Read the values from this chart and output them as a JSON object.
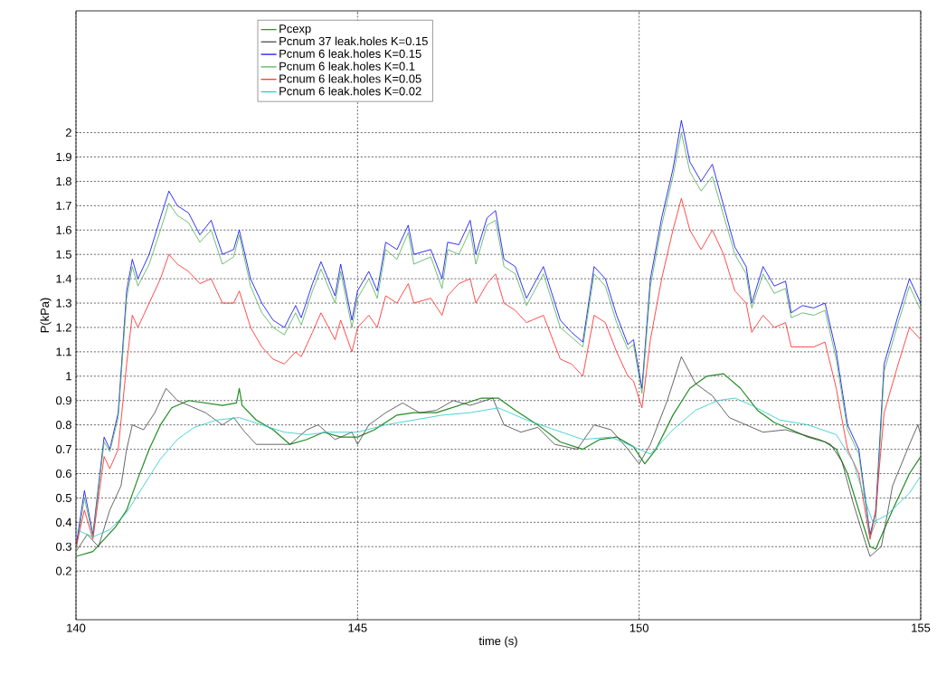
{
  "chart_data": {
    "type": "line",
    "xlabel": "time (s)",
    "ylabel": "P(kPa)",
    "xlim": [
      140,
      155
    ],
    "ylim": [
      0,
      2.5
    ],
    "xticks": [
      140,
      145,
      150,
      155
    ],
    "yticks": [
      0.2,
      0.3,
      0.4,
      0.5,
      0.6,
      0.7,
      0.8,
      0.9,
      1,
      1.1,
      1.2,
      1.3,
      1.4,
      1.5,
      1.6,
      1.7,
      1.8,
      1.9,
      2
    ],
    "grid": true,
    "legend": "top",
    "line_style": "solid",
    "marker": "none",
    "series": [
      {
        "name": "Pcexp",
        "color": "#228b22",
        "x": [
          140.0,
          140.3,
          140.5,
          140.7,
          140.9,
          141.1,
          141.3,
          141.5,
          141.7,
          142.0,
          142.3,
          142.6,
          142.85,
          142.9,
          142.95,
          143.2,
          143.5,
          143.8,
          144.1,
          144.4,
          144.7,
          145.0,
          145.3,
          145.7,
          146.0,
          146.4,
          146.8,
          147.2,
          147.5,
          147.8,
          148.2,
          148.6,
          149.0,
          149.3,
          149.6,
          149.9,
          150.1,
          150.3,
          150.6,
          150.9,
          151.2,
          151.5,
          151.8,
          152.1,
          152.4,
          152.7,
          153.0,
          153.3,
          153.5,
          153.7,
          153.9,
          154.1,
          154.2,
          154.5,
          154.8,
          155.0
        ],
        "values": [
          0.26,
          0.28,
          0.33,
          0.38,
          0.45,
          0.58,
          0.7,
          0.8,
          0.87,
          0.9,
          0.89,
          0.88,
          0.89,
          0.95,
          0.88,
          0.82,
          0.78,
          0.72,
          0.74,
          0.77,
          0.75,
          0.75,
          0.78,
          0.84,
          0.85,
          0.85,
          0.88,
          0.91,
          0.91,
          0.86,
          0.8,
          0.73,
          0.7,
          0.74,
          0.75,
          0.71,
          0.64,
          0.7,
          0.84,
          0.95,
          1.0,
          1.01,
          0.95,
          0.86,
          0.81,
          0.78,
          0.75,
          0.73,
          0.7,
          0.6,
          0.45,
          0.3,
          0.29,
          0.45,
          0.6,
          0.67
        ]
      },
      {
        "name": "Pcnum 37 leak.holes K=0.15",
        "color": "#404040",
        "x": [
          140.0,
          140.2,
          140.4,
          140.6,
          140.8,
          140.9,
          141.0,
          141.2,
          141.4,
          141.6,
          141.8,
          142.0,
          142.3,
          142.6,
          142.8,
          143.0,
          143.2,
          143.5,
          143.8,
          144.1,
          144.3,
          144.6,
          144.9,
          145.0,
          145.2,
          145.5,
          145.8,
          146.1,
          146.4,
          146.7,
          147.0,
          147.4,
          147.6,
          147.9,
          148.2,
          148.5,
          148.9,
          149.2,
          149.5,
          149.8,
          150.0,
          150.2,
          150.5,
          150.75,
          151.0,
          151.3,
          151.6,
          151.9,
          152.2,
          152.6,
          152.9,
          153.2,
          153.4,
          153.6,
          153.8,
          154.0,
          154.1,
          154.3,
          154.5,
          154.8,
          154.95,
          155.0
        ],
        "values": [
          0.28,
          0.35,
          0.3,
          0.45,
          0.55,
          0.7,
          0.8,
          0.78,
          0.85,
          0.95,
          0.9,
          0.88,
          0.85,
          0.8,
          0.83,
          0.77,
          0.72,
          0.72,
          0.72,
          0.78,
          0.8,
          0.74,
          0.77,
          0.72,
          0.8,
          0.85,
          0.89,
          0.85,
          0.86,
          0.9,
          0.88,
          0.91,
          0.8,
          0.77,
          0.79,
          0.72,
          0.7,
          0.8,
          0.78,
          0.7,
          0.64,
          0.72,
          0.9,
          1.08,
          0.97,
          0.92,
          0.83,
          0.8,
          0.77,
          0.78,
          0.76,
          0.74,
          0.72,
          0.65,
          0.48,
          0.33,
          0.26,
          0.3,
          0.55,
          0.72,
          0.8,
          0.76
        ]
      },
      {
        "name": "Pcnum 6 leak.holes K=0.15",
        "color": "#0000ff",
        "x": [
          140.0,
          140.15,
          140.3,
          140.5,
          140.6,
          140.75,
          140.9,
          141.0,
          141.1,
          141.3,
          141.5,
          141.65,
          141.8,
          142.0,
          142.2,
          142.4,
          142.6,
          142.8,
          142.9,
          143.1,
          143.3,
          143.5,
          143.7,
          143.9,
          144.0,
          144.2,
          144.35,
          144.6,
          144.7,
          144.9,
          145.0,
          145.2,
          145.35,
          145.5,
          145.7,
          145.9,
          146.0,
          146.3,
          146.5,
          146.6,
          146.8,
          147.0,
          147.1,
          147.3,
          147.45,
          147.6,
          147.8,
          148.0,
          148.3,
          148.6,
          148.8,
          149.0,
          149.2,
          149.4,
          149.6,
          149.8,
          149.9,
          150.05,
          150.2,
          150.4,
          150.6,
          150.75,
          150.9,
          151.1,
          151.3,
          151.5,
          151.7,
          151.9,
          152.0,
          152.2,
          152.4,
          152.6,
          152.7,
          152.9,
          153.1,
          153.3,
          153.5,
          153.7,
          153.9,
          154.1,
          154.2,
          154.35,
          154.6,
          154.8,
          155.0
        ],
        "values": [
          0.3,
          0.53,
          0.35,
          0.75,
          0.7,
          0.85,
          1.35,
          1.48,
          1.4,
          1.5,
          1.65,
          1.76,
          1.7,
          1.67,
          1.58,
          1.64,
          1.5,
          1.52,
          1.6,
          1.4,
          1.3,
          1.23,
          1.2,
          1.29,
          1.24,
          1.38,
          1.47,
          1.33,
          1.46,
          1.23,
          1.35,
          1.43,
          1.35,
          1.55,
          1.52,
          1.62,
          1.5,
          1.52,
          1.4,
          1.55,
          1.54,
          1.64,
          1.5,
          1.65,
          1.68,
          1.48,
          1.45,
          1.32,
          1.45,
          1.23,
          1.18,
          1.14,
          1.45,
          1.4,
          1.25,
          1.13,
          1.15,
          0.95,
          1.4,
          1.65,
          1.85,
          2.05,
          1.88,
          1.8,
          1.87,
          1.7,
          1.53,
          1.45,
          1.3,
          1.45,
          1.37,
          1.39,
          1.26,
          1.29,
          1.28,
          1.3,
          1.1,
          0.8,
          0.7,
          0.35,
          0.44,
          1.05,
          1.25,
          1.4,
          1.3
        ]
      },
      {
        "name": "Pcnum 6 leak.holes K=0.1",
        "color": "#4caf50",
        "x": [
          140.0,
          140.15,
          140.3,
          140.5,
          140.6,
          140.75,
          140.9,
          141.0,
          141.1,
          141.3,
          141.5,
          141.65,
          141.8,
          142.0,
          142.2,
          142.4,
          142.6,
          142.8,
          142.9,
          143.1,
          143.3,
          143.5,
          143.7,
          143.9,
          144.0,
          144.2,
          144.35,
          144.6,
          144.7,
          144.9,
          145.0,
          145.2,
          145.35,
          145.5,
          145.7,
          145.9,
          146.0,
          146.3,
          146.5,
          146.6,
          146.8,
          147.0,
          147.1,
          147.3,
          147.45,
          147.6,
          147.8,
          148.0,
          148.3,
          148.6,
          148.8,
          149.0,
          149.2,
          149.4,
          149.6,
          149.8,
          149.9,
          150.05,
          150.2,
          150.4,
          150.6,
          150.75,
          150.9,
          151.1,
          151.3,
          151.5,
          151.7,
          151.9,
          152.0,
          152.2,
          152.4,
          152.6,
          152.7,
          152.9,
          153.1,
          153.3,
          153.5,
          153.7,
          153.9,
          154.1,
          154.2,
          154.35,
          154.6,
          154.8,
          155.0
        ],
        "values": [
          0.28,
          0.5,
          0.34,
          0.73,
          0.69,
          0.83,
          1.32,
          1.45,
          1.37,
          1.46,
          1.6,
          1.71,
          1.66,
          1.63,
          1.55,
          1.6,
          1.46,
          1.49,
          1.58,
          1.37,
          1.26,
          1.2,
          1.17,
          1.26,
          1.21,
          1.35,
          1.44,
          1.3,
          1.43,
          1.2,
          1.32,
          1.4,
          1.32,
          1.52,
          1.48,
          1.59,
          1.46,
          1.49,
          1.36,
          1.52,
          1.5,
          1.6,
          1.46,
          1.62,
          1.64,
          1.45,
          1.42,
          1.29,
          1.42,
          1.2,
          1.16,
          1.12,
          1.42,
          1.37,
          1.22,
          1.11,
          1.13,
          0.93,
          1.37,
          1.62,
          1.82,
          2.0,
          1.84,
          1.76,
          1.82,
          1.66,
          1.5,
          1.42,
          1.28,
          1.42,
          1.34,
          1.36,
          1.24,
          1.26,
          1.25,
          1.27,
          1.07,
          0.78,
          0.68,
          0.34,
          0.4,
          1.02,
          1.22,
          1.37,
          1.27
        ]
      },
      {
        "name": "Pcnum 6 leak.holes K=0.05",
        "color": "#ff2020",
        "x": [
          140.0,
          140.15,
          140.3,
          140.5,
          140.6,
          140.75,
          140.9,
          141.0,
          141.1,
          141.3,
          141.5,
          141.65,
          141.8,
          142.0,
          142.2,
          142.4,
          142.6,
          142.8,
          142.9,
          143.1,
          143.3,
          143.5,
          143.7,
          143.9,
          144.0,
          144.2,
          144.35,
          144.6,
          144.7,
          144.9,
          145.0,
          145.2,
          145.35,
          145.5,
          145.7,
          145.9,
          146.0,
          146.3,
          146.5,
          146.6,
          146.8,
          147.0,
          147.1,
          147.3,
          147.45,
          147.6,
          147.8,
          148.0,
          148.3,
          148.6,
          148.8,
          149.0,
          149.2,
          149.4,
          149.6,
          149.8,
          149.9,
          150.05,
          150.2,
          150.4,
          150.6,
          150.75,
          150.9,
          151.1,
          151.3,
          151.5,
          151.7,
          151.9,
          152.0,
          152.2,
          152.4,
          152.6,
          152.7,
          152.9,
          153.1,
          153.3,
          153.5,
          153.7,
          153.9,
          154.1,
          154.2,
          154.35,
          154.6,
          154.8,
          155.0
        ],
        "values": [
          0.3,
          0.45,
          0.33,
          0.67,
          0.62,
          0.7,
          1.05,
          1.25,
          1.2,
          1.3,
          1.4,
          1.5,
          1.46,
          1.43,
          1.38,
          1.4,
          1.3,
          1.3,
          1.35,
          1.2,
          1.12,
          1.07,
          1.05,
          1.1,
          1.08,
          1.18,
          1.26,
          1.15,
          1.23,
          1.1,
          1.2,
          1.25,
          1.2,
          1.33,
          1.3,
          1.38,
          1.3,
          1.32,
          1.25,
          1.33,
          1.38,
          1.4,
          1.3,
          1.38,
          1.42,
          1.3,
          1.27,
          1.22,
          1.25,
          1.07,
          1.05,
          1.0,
          1.25,
          1.22,
          1.1,
          1.0,
          0.98,
          0.87,
          1.15,
          1.4,
          1.6,
          1.73,
          1.6,
          1.52,
          1.6,
          1.5,
          1.35,
          1.3,
          1.18,
          1.25,
          1.2,
          1.22,
          1.12,
          1.12,
          1.12,
          1.14,
          0.95,
          0.7,
          0.6,
          0.33,
          0.45,
          0.85,
          1.05,
          1.2,
          1.15
        ]
      },
      {
        "name": "Pcnum 6 leak.holes K=0.02",
        "color": "#20c8c8",
        "x": [
          140.0,
          140.3,
          140.6,
          140.9,
          141.2,
          141.5,
          141.8,
          142.1,
          142.5,
          142.9,
          143.3,
          143.7,
          144.1,
          144.5,
          145.0,
          145.5,
          146.0,
          146.5,
          147.0,
          147.5,
          148.0,
          148.5,
          149.0,
          149.5,
          150.0,
          150.2,
          150.6,
          151.0,
          151.4,
          151.7,
          152.0,
          152.5,
          153.0,
          153.5,
          153.8,
          154.0,
          154.15,
          154.4,
          154.8,
          155.0
        ],
        "values": [
          0.37,
          0.34,
          0.37,
          0.44,
          0.55,
          0.66,
          0.74,
          0.79,
          0.82,
          0.83,
          0.8,
          0.77,
          0.76,
          0.77,
          0.77,
          0.8,
          0.82,
          0.84,
          0.85,
          0.87,
          0.82,
          0.78,
          0.74,
          0.75,
          0.7,
          0.68,
          0.78,
          0.86,
          0.9,
          0.91,
          0.88,
          0.82,
          0.8,
          0.76,
          0.65,
          0.5,
          0.4,
          0.43,
          0.52,
          0.59
        ]
      }
    ]
  }
}
